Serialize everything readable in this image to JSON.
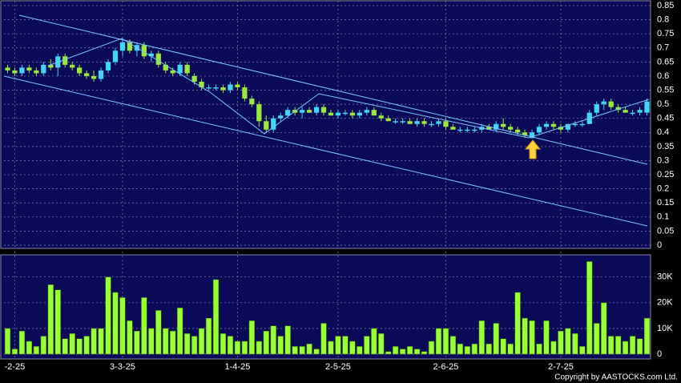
{
  "chart_data": [
    {
      "type": "candlestick",
      "open": [
        0.63,
        0.62,
        0.61,
        0.63,
        0.62,
        0.61,
        0.64,
        0.63,
        0.67,
        0.64,
        0.63,
        0.61,
        0.6,
        0.59,
        0.62,
        0.65,
        0.69,
        0.72,
        0.69,
        0.71,
        0.67,
        0.68,
        0.64,
        0.62,
        0.61,
        0.64,
        0.6,
        0.58,
        0.56,
        0.56,
        0.56,
        0.55,
        0.57,
        0.56,
        0.52,
        0.5,
        0.44,
        0.41,
        0.45,
        0.46,
        0.48,
        0.47,
        0.48,
        0.47,
        0.49,
        0.47,
        0.46,
        0.47,
        0.47,
        0.46,
        0.47,
        0.48,
        0.46,
        0.45,
        0.44,
        0.44,
        0.44,
        0.43,
        0.44,
        0.43,
        0.43,
        0.44,
        0.42,
        0.41,
        0.41,
        0.41,
        0.41,
        0.42,
        0.41,
        0.43,
        0.42,
        0.41,
        0.4,
        0.38,
        0.4,
        0.42,
        0.43,
        0.42,
        0.41,
        0.43,
        0.43,
        0.43,
        0.47,
        0.5,
        0.51,
        0.49,
        0.48,
        0.47,
        0.47,
        0.47
      ],
      "high": [
        0.64,
        0.63,
        0.64,
        0.64,
        0.63,
        0.65,
        0.66,
        0.68,
        0.68,
        0.65,
        0.64,
        0.62,
        0.62,
        0.63,
        0.66,
        0.7,
        0.73,
        0.73,
        0.72,
        0.72,
        0.69,
        0.69,
        0.65,
        0.63,
        0.65,
        0.65,
        0.61,
        0.59,
        0.57,
        0.57,
        0.57,
        0.58,
        0.58,
        0.57,
        0.53,
        0.51,
        0.46,
        0.46,
        0.47,
        0.49,
        0.49,
        0.49,
        0.49,
        0.5,
        0.5,
        0.48,
        0.48,
        0.48,
        0.48,
        0.48,
        0.49,
        0.49,
        0.47,
        0.46,
        0.45,
        0.45,
        0.45,
        0.45,
        0.45,
        0.44,
        0.45,
        0.45,
        0.43,
        0.42,
        0.42,
        0.42,
        0.43,
        0.43,
        0.44,
        0.45,
        0.43,
        0.42,
        0.41,
        0.41,
        0.43,
        0.44,
        0.44,
        0.43,
        0.43,
        0.44,
        0.44,
        0.48,
        0.51,
        0.52,
        0.52,
        0.5,
        0.49,
        0.48,
        0.49,
        0.52
      ],
      "low": [
        0.61,
        0.6,
        0.6,
        0.61,
        0.6,
        0.6,
        0.62,
        0.6,
        0.63,
        0.62,
        0.6,
        0.59,
        0.58,
        0.58,
        0.61,
        0.64,
        0.67,
        0.68,
        0.67,
        0.66,
        0.65,
        0.63,
        0.61,
        0.6,
        0.6,
        0.6,
        0.57,
        0.55,
        0.55,
        0.55,
        0.54,
        0.54,
        0.55,
        0.51,
        0.49,
        0.42,
        0.4,
        0.4,
        0.44,
        0.45,
        0.46,
        0.45,
        0.47,
        0.46,
        0.46,
        0.46,
        0.45,
        0.46,
        0.45,
        0.45,
        0.46,
        0.46,
        0.44,
        0.44,
        0.43,
        0.43,
        0.43,
        0.42,
        0.42,
        0.42,
        0.42,
        0.41,
        0.41,
        0.4,
        0.4,
        0.4,
        0.4,
        0.41,
        0.4,
        0.41,
        0.4,
        0.39,
        0.38,
        0.38,
        0.39,
        0.41,
        0.41,
        0.4,
        0.4,
        0.42,
        0.42,
        0.43,
        0.46,
        0.48,
        0.48,
        0.47,
        0.47,
        0.46,
        0.46,
        0.46
      ],
      "close": [
        0.62,
        0.61,
        0.63,
        0.62,
        0.61,
        0.64,
        0.63,
        0.67,
        0.64,
        0.63,
        0.61,
        0.6,
        0.59,
        0.62,
        0.65,
        0.69,
        0.72,
        0.69,
        0.71,
        0.67,
        0.68,
        0.64,
        0.62,
        0.61,
        0.64,
        0.61,
        0.58,
        0.56,
        0.56,
        0.56,
        0.55,
        0.57,
        0.56,
        0.52,
        0.5,
        0.44,
        0.41,
        0.45,
        0.46,
        0.48,
        0.47,
        0.48,
        0.47,
        0.49,
        0.47,
        0.46,
        0.47,
        0.47,
        0.46,
        0.47,
        0.48,
        0.46,
        0.45,
        0.44,
        0.44,
        0.44,
        0.43,
        0.44,
        0.43,
        0.43,
        0.44,
        0.42,
        0.41,
        0.41,
        0.41,
        0.41,
        0.42,
        0.41,
        0.43,
        0.42,
        0.41,
        0.4,
        0.39,
        0.4,
        0.42,
        0.43,
        0.42,
        0.41,
        0.43,
        0.43,
        0.43,
        0.47,
        0.5,
        0.51,
        0.49,
        0.48,
        0.47,
        0.47,
        0.48,
        0.51
      ],
      "up_color": "#44d4f8",
      "down_color": "#99e83a",
      "ylim": [
        0,
        0.85
      ],
      "yticks": [
        0,
        0.05,
        0.1,
        0.15,
        0.2,
        0.25,
        0.3,
        0.35,
        0.4,
        0.45,
        0.5,
        0.55,
        0.6,
        0.65,
        0.7,
        0.75,
        0.8,
        0.85
      ],
      "grid": true
    },
    {
      "type": "bar",
      "categories": [
        null,
        "-2-25",
        null,
        null,
        null,
        null,
        null,
        null,
        null,
        null,
        null,
        null,
        null,
        null,
        null,
        null,
        "3-3-25",
        null,
        null,
        null,
        null,
        null,
        null,
        null,
        null,
        null,
        null,
        null,
        null,
        null,
        null,
        null,
        "1-4-25",
        null,
        null,
        null,
        null,
        null,
        null,
        null,
        null,
        null,
        null,
        null,
        null,
        null,
        "2-5-25",
        null,
        null,
        null,
        null,
        null,
        null,
        null,
        null,
        null,
        null,
        null,
        null,
        null,
        null,
        "2-6-25",
        null,
        null,
        null,
        null,
        null,
        null,
        null,
        null,
        null,
        null,
        null,
        null,
        null,
        null,
        null,
        "2-7-25",
        null,
        null,
        null,
        null,
        null,
        null,
        null,
        null,
        null,
        null,
        null,
        null
      ],
      "values": [
        10000,
        2000,
        9000,
        5000,
        3000,
        7000,
        27000,
        25000,
        6000,
        8000,
        6000,
        7000,
        10000,
        10000,
        30000,
        24000,
        22000,
        13000,
        9000,
        22000,
        10000,
        17000,
        10000,
        9000,
        18000,
        8000,
        7000,
        10000,
        14000,
        29000,
        8000,
        7000,
        5000,
        5000,
        13000,
        5000,
        9000,
        11000,
        7000,
        11000,
        3000,
        3000,
        4000,
        2000,
        12000,
        5000,
        7000,
        7000,
        5000,
        3000,
        7000,
        10000,
        8000,
        1000,
        3000,
        2000,
        3000,
        2000,
        1000,
        5000,
        10000,
        10000,
        7000,
        4000,
        3000,
        4000,
        13000,
        4000,
        12000,
        6000,
        4000,
        24000,
        14000,
        13000,
        4000,
        13000,
        5000,
        9000,
        10000,
        8000,
        3000,
        36000,
        12000,
        20000,
        7000,
        7000,
        5000,
        7000,
        6000,
        14000
      ],
      "color": "#99ff33",
      "ylim": [
        0,
        38000
      ],
      "yticks": [
        0,
        {
          "value": 10000,
          "label": "10K"
        },
        {
          "value": 20000,
          "label": "20K"
        },
        {
          "value": 30000,
          "label": "30K"
        }
      ],
      "grid": true
    }
  ],
  "footer": {
    "copyright": "Copyright by AASTOCKS.com Ltd."
  }
}
